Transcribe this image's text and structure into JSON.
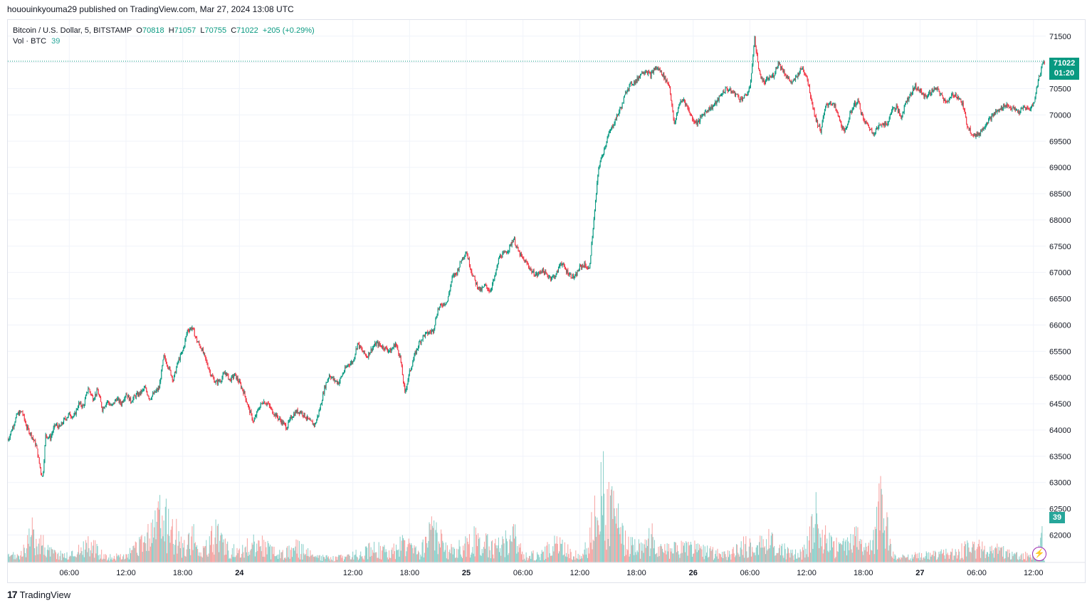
{
  "header": {
    "published_text": "hououinkyouma29 published on TradingView.com, Mar 27, 2024 13:08 UTC"
  },
  "legend": {
    "symbol": "Bitcoin / U.S. Dollar, 5, BITSTAMP",
    "o_label": "O",
    "o_value": "70818",
    "h_label": "H",
    "h_value": "71057",
    "l_label": "L",
    "l_value": "70755",
    "c_label": "C",
    "c_value": "71022",
    "change": "+205 (+0.29%)",
    "vol_label": "Vol · BTC",
    "vol_value": "39"
  },
  "badges": {
    "price": "71022",
    "countdown": "01:20",
    "volume": "39"
  },
  "footer": {
    "brand": "TradingView",
    "logo": "17"
  },
  "colors": {
    "up": "#089981",
    "down": "#f23645",
    "vol_up": "#26a69a",
    "vol_down": "#ef5350",
    "grid": "#f0f3fa",
    "accent": "#9c27b0"
  },
  "chart_data": {
    "type": "line",
    "title": "Bitcoin / U.S. Dollar, 5, BITSTAMP",
    "xlabel": "",
    "ylabel": "",
    "ylim": [
      61600,
      71700
    ],
    "y_ticks": [
      71500,
      71000,
      70500,
      70000,
      69500,
      69000,
      68500,
      68000,
      67500,
      67000,
      66500,
      66000,
      65500,
      65000,
      64500,
      64000,
      63500,
      63000,
      62500,
      62000
    ],
    "x_tick_labels": [
      "06:00",
      "12:00",
      "18:00",
      "24",
      "12:00",
      "18:00",
      "25",
      "06:00",
      "12:00",
      "18:00",
      "26",
      "06:00",
      "12:00",
      "18:00",
      "27",
      "06:00",
      "12:00"
    ],
    "x_tick_hours": [
      6,
      12,
      18,
      24,
      36,
      42,
      48,
      54,
      60,
      66,
      72,
      78,
      84,
      90,
      96,
      102,
      108
    ],
    "x_range_hours": [
      -0.5,
      109.3
    ],
    "series": [
      {
        "name": "BTCUSD close",
        "points": [
          [
            -0.5,
            63800
          ],
          [
            0.5,
            64300
          ],
          [
            1,
            64350
          ],
          [
            1.5,
            64050
          ],
          [
            2,
            63900
          ],
          [
            2.5,
            63700
          ],
          [
            3,
            63200
          ],
          [
            3.2,
            63100
          ],
          [
            3.5,
            63900
          ],
          [
            4,
            63850
          ],
          [
            4.5,
            64100
          ],
          [
            5,
            64050
          ],
          [
            5.5,
            64200
          ],
          [
            6,
            64300
          ],
          [
            6.5,
            64250
          ],
          [
            7,
            64500
          ],
          [
            7.5,
            64450
          ],
          [
            8,
            64800
          ],
          [
            8.5,
            64600
          ],
          [
            9,
            64750
          ],
          [
            9.5,
            64400
          ],
          [
            10,
            64550
          ],
          [
            10.5,
            64450
          ],
          [
            11,
            64600
          ],
          [
            11.5,
            64500
          ],
          [
            12,
            64700
          ],
          [
            12.5,
            64550
          ],
          [
            13,
            64650
          ],
          [
            13.5,
            64700
          ],
          [
            14,
            64800
          ],
          [
            14.5,
            64600
          ],
          [
            15,
            64700
          ],
          [
            15.5,
            64800
          ],
          [
            16,
            65400
          ],
          [
            16.5,
            65200
          ],
          [
            17,
            64950
          ],
          [
            17.5,
            65300
          ],
          [
            18,
            65500
          ],
          [
            18.5,
            65900
          ],
          [
            19,
            65950
          ],
          [
            19.5,
            65700
          ],
          [
            20,
            65550
          ],
          [
            20.5,
            65300
          ],
          [
            21,
            65050
          ],
          [
            21.5,
            64900
          ],
          [
            22,
            64950
          ],
          [
            22.5,
            65100
          ],
          [
            23,
            64950
          ],
          [
            23.5,
            65050
          ],
          [
            24,
            64900
          ],
          [
            24.5,
            64700
          ],
          [
            25,
            64400
          ],
          [
            25.5,
            64150
          ],
          [
            26,
            64400
          ],
          [
            26.5,
            64550
          ],
          [
            27,
            64500
          ],
          [
            27.5,
            64350
          ],
          [
            28,
            64250
          ],
          [
            28.5,
            64150
          ],
          [
            29,
            64050
          ],
          [
            29.5,
            64250
          ],
          [
            30,
            64350
          ],
          [
            30.5,
            64350
          ],
          [
            31,
            64250
          ],
          [
            31.5,
            64150
          ],
          [
            32,
            64100
          ],
          [
            32.5,
            64400
          ],
          [
            33,
            64800
          ],
          [
            33.5,
            65050
          ],
          [
            34,
            64950
          ],
          [
            34.5,
            64900
          ],
          [
            35,
            65100
          ],
          [
            35.5,
            65250
          ],
          [
            36,
            65300
          ],
          [
            36.5,
            65650
          ],
          [
            37,
            65500
          ],
          [
            37.5,
            65400
          ],
          [
            38,
            65550
          ],
          [
            38.5,
            65650
          ],
          [
            39,
            65600
          ],
          [
            39.5,
            65550
          ],
          [
            40,
            65500
          ],
          [
            40.5,
            65650
          ],
          [
            41,
            65400
          ],
          [
            41.5,
            64700
          ],
          [
            42,
            65100
          ],
          [
            42.5,
            65400
          ],
          [
            43,
            65650
          ],
          [
            43.5,
            65800
          ],
          [
            44,
            65850
          ],
          [
            44.5,
            65900
          ],
          [
            45,
            66300
          ],
          [
            45.5,
            66400
          ],
          [
            46,
            66450
          ],
          [
            46.5,
            66900
          ],
          [
            47,
            67000
          ],
          [
            47.5,
            67250
          ],
          [
            48,
            67400
          ],
          [
            48.5,
            67050
          ],
          [
            49,
            66800
          ],
          [
            49.5,
            66650
          ],
          [
            50,
            66750
          ],
          [
            50.5,
            66650
          ],
          [
            51,
            66900
          ],
          [
            51.5,
            67300
          ],
          [
            52,
            67350
          ],
          [
            52.5,
            67450
          ],
          [
            53,
            67650
          ],
          [
            53.5,
            67400
          ],
          [
            54,
            67250
          ],
          [
            54.5,
            67150
          ],
          [
            55,
            67000
          ],
          [
            55.5,
            66950
          ],
          [
            56,
            67050
          ],
          [
            56.5,
            66950
          ],
          [
            57,
            66900
          ],
          [
            57.5,
            66950
          ],
          [
            58,
            67200
          ],
          [
            58.5,
            67050
          ],
          [
            59,
            66950
          ],
          [
            59.5,
            66900
          ],
          [
            60,
            67100
          ],
          [
            60.5,
            67150
          ],
          [
            61,
            67050
          ],
          [
            61.5,
            68000
          ],
          [
            62,
            69000
          ],
          [
            62.5,
            69300
          ],
          [
            63,
            69600
          ],
          [
            63.5,
            69800
          ],
          [
            64,
            70000
          ],
          [
            64.5,
            70200
          ],
          [
            65,
            70500
          ],
          [
            65.5,
            70600
          ],
          [
            66,
            70650
          ],
          [
            66.5,
            70800
          ],
          [
            67,
            70850
          ],
          [
            67.5,
            70750
          ],
          [
            68,
            70900
          ],
          [
            68.5,
            70850
          ],
          [
            69,
            70700
          ],
          [
            69.5,
            70550
          ],
          [
            70,
            69800
          ],
          [
            70.5,
            70200
          ],
          [
            71,
            70300
          ],
          [
            71.5,
            70100
          ],
          [
            72,
            69900
          ],
          [
            72.5,
            69850
          ],
          [
            73,
            70000
          ],
          [
            73.5,
            70100
          ],
          [
            74,
            70150
          ],
          [
            74.5,
            70250
          ],
          [
            75,
            70400
          ],
          [
            75.5,
            70500
          ],
          [
            76,
            70450
          ],
          [
            76.5,
            70400
          ],
          [
            77,
            70300
          ],
          [
            77.5,
            70350
          ],
          [
            78,
            70500
          ],
          [
            78.5,
            71450
          ],
          [
            79,
            70800
          ],
          [
            79.5,
            70600
          ],
          [
            80,
            70700
          ],
          [
            80.5,
            70750
          ],
          [
            81,
            71000
          ],
          [
            81.5,
            70850
          ],
          [
            82,
            70700
          ],
          [
            82.5,
            70600
          ],
          [
            83,
            70750
          ],
          [
            83.5,
            70900
          ],
          [
            84,
            70750
          ],
          [
            84.5,
            70300
          ],
          [
            85,
            69900
          ],
          [
            85.5,
            69700
          ],
          [
            86,
            70150
          ],
          [
            86.5,
            70250
          ],
          [
            87,
            70150
          ],
          [
            87.5,
            69900
          ],
          [
            88,
            69650
          ],
          [
            88.5,
            69950
          ],
          [
            89,
            70200
          ],
          [
            89.5,
            70250
          ],
          [
            90,
            69900
          ],
          [
            90.5,
            69800
          ],
          [
            91,
            69650
          ],
          [
            91.5,
            69750
          ],
          [
            92,
            69850
          ],
          [
            92.5,
            69800
          ],
          [
            93,
            70100
          ],
          [
            93.5,
            70150
          ],
          [
            94,
            69950
          ],
          [
            94.5,
            70250
          ],
          [
            95,
            70400
          ],
          [
            95.5,
            70550
          ],
          [
            96,
            70450
          ],
          [
            96.5,
            70350
          ],
          [
            97,
            70400
          ],
          [
            97.5,
            70500
          ],
          [
            98,
            70450
          ],
          [
            98.5,
            70300
          ],
          [
            99,
            70250
          ],
          [
            99.5,
            70400
          ],
          [
            100,
            70350
          ],
          [
            100.5,
            70200
          ],
          [
            101,
            69800
          ],
          [
            101.5,
            69650
          ],
          [
            102,
            69600
          ],
          [
            102.5,
            69700
          ],
          [
            103,
            69850
          ],
          [
            103.5,
            69950
          ],
          [
            104,
            70050
          ],
          [
            104.5,
            70100
          ],
          [
            105,
            70200
          ],
          [
            105.5,
            70150
          ],
          [
            106,
            70100
          ],
          [
            106.5,
            70050
          ],
          [
            107,
            70150
          ],
          [
            107.5,
            70100
          ],
          [
            108,
            70200
          ],
          [
            108.5,
            70650
          ],
          [
            109,
            71000
          ],
          [
            109.2,
            71022
          ]
        ]
      },
      {
        "name": "Volume BTC",
        "points": [
          [
            -0.5,
            8
          ],
          [
            1,
            12
          ],
          [
            2.2,
            45
          ],
          [
            4,
            15
          ],
          [
            6,
            10
          ],
          [
            8,
            28
          ],
          [
            10,
            8
          ],
          [
            12,
            9
          ],
          [
            14,
            30
          ],
          [
            15.5,
            68
          ],
          [
            17,
            50
          ],
          [
            18,
            20
          ],
          [
            19,
            40
          ],
          [
            20,
            12
          ],
          [
            21.5,
            42
          ],
          [
            23,
            15
          ],
          [
            24,
            20
          ],
          [
            26,
            30
          ],
          [
            28,
            12
          ],
          [
            30,
            22
          ],
          [
            32,
            8
          ],
          [
            34,
            6
          ],
          [
            36,
            10
          ],
          [
            38,
            22
          ],
          [
            40,
            14
          ],
          [
            41.5,
            30
          ],
          [
            43,
            12
          ],
          [
            44.5,
            53
          ],
          [
            46,
            16
          ],
          [
            48,
            25
          ],
          [
            49,
            35
          ],
          [
            51,
            22
          ],
          [
            53,
            42
          ],
          [
            54,
            10
          ],
          [
            56,
            12
          ],
          [
            57.5,
            30
          ],
          [
            59,
            16
          ],
          [
            60,
            8
          ],
          [
            61,
            26
          ],
          [
            61.8,
            95
          ],
          [
            62.3,
            125
          ],
          [
            62.8,
            70
          ],
          [
            63.4,
            80
          ],
          [
            64,
            60
          ],
          [
            64.8,
            30
          ],
          [
            65.5,
            25
          ],
          [
            66.5,
            20
          ],
          [
            67.5,
            40
          ],
          [
            68.5,
            18
          ],
          [
            70,
            20
          ],
          [
            71.5,
            25
          ],
          [
            73,
            18
          ],
          [
            74.5,
            14
          ],
          [
            76,
            12
          ],
          [
            77.5,
            28
          ],
          [
            78.5,
            18
          ],
          [
            79.5,
            35
          ],
          [
            81,
            22
          ],
          [
            82.5,
            12
          ],
          [
            84,
            18
          ],
          [
            84.6,
            65
          ],
          [
            85.1,
            80
          ],
          [
            85.7,
            40
          ],
          [
            86.5,
            30
          ],
          [
            87.5,
            20
          ],
          [
            88.5,
            25
          ],
          [
            89.5,
            40
          ],
          [
            90,
            15
          ],
          [
            91,
            30
          ],
          [
            92,
            105
          ],
          [
            93,
            12
          ],
          [
            94,
            8
          ],
          [
            96,
            10
          ],
          [
            98,
            12
          ],
          [
            100,
            15
          ],
          [
            101.5,
            25
          ],
          [
            103,
            20
          ],
          [
            104.5,
            18
          ],
          [
            106,
            10
          ],
          [
            107.5,
            10
          ],
          [
            108.5,
            12
          ],
          [
            109,
            39
          ]
        ]
      }
    ]
  }
}
